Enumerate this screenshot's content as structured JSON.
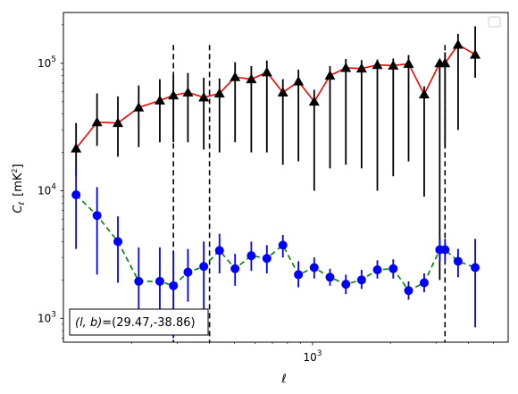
{
  "chart_data": {
    "type": "line",
    "xlabel": "ℓ",
    "ylabel_main": "C",
    "ylabel_sub": "ℓ",
    "ylabel_unit": "[mK",
    "ylabel_unit_sup": "2",
    "ylabel_unit_close": "]",
    "xscale": "log",
    "yscale": "log",
    "xlim": [
      109,
      5700
    ],
    "ylim": [
      650,
      250000
    ],
    "x_tick_labels": [
      {
        "value": 1000,
        "base": "10",
        "exp": "3"
      }
    ],
    "y_tick_labels": [
      {
        "value": 1000,
        "base": "10",
        "exp": "3"
      },
      {
        "value": 10000,
        "base": "10",
        "exp": "4"
      },
      {
        "value": 100000,
        "base": "10",
        "exp": "5"
      }
    ],
    "annotation": "(l, b)=(29.47,-38.86)",
    "annotation_parts": {
      "lb": "(l, b)",
      "eq": "=(29.47,-38.86)"
    },
    "legend": "top-right (empty)",
    "vlines": [
      290,
      400,
      3250
    ],
    "series": [
      {
        "marker": "triangle",
        "line_color": "#ff0000",
        "marker_color": "#000000",
        "line_style": "solid",
        "x": [
          122,
          147,
          177,
          213,
          257,
          290,
          330,
          380,
          437,
          502,
          580,
          666,
          768,
          882,
          1015,
          1168,
          1345,
          1547,
          1780,
          2050,
          2350,
          2700,
          3100,
          3250,
          3650,
          4250
        ],
        "y": [
          21500,
          34500,
          34000,
          45000,
          51000,
          56000,
          59000,
          54000,
          58000,
          78000,
          75000,
          85000,
          59000,
          72000,
          50000,
          80000,
          92000,
          91000,
          97000,
          96000,
          99000,
          57000,
          100000,
          100000,
          140000,
          117000
        ],
        "err_low": [
          13000,
          22500,
          18500,
          22000,
          24000,
          24000,
          24000,
          21000,
          20000,
          24000,
          20000,
          20000,
          16000,
          17000,
          10000,
          15000,
          16000,
          15000,
          10000,
          13000,
          17000,
          9000,
          2000,
          22000,
          30000,
          77000
        ],
        "err_high": [
          34000,
          58000,
          55000,
          67000,
          75000,
          80000,
          84000,
          77000,
          76000,
          102000,
          95000,
          105000,
          75000,
          89000,
          62000,
          95000,
          108000,
          106000,
          107000,
          109000,
          116000,
          66000,
          102000,
          122000,
          170000,
          195000
        ]
      },
      {
        "marker": "circle",
        "line_color": "#008000",
        "marker_color": "#0000ff",
        "line_style": "dashed",
        "x": [
          122,
          147,
          177,
          213,
          257,
          290,
          330,
          380,
          437,
          502,
          580,
          666,
          768,
          882,
          1015,
          1168,
          1345,
          1547,
          1780,
          2050,
          2350,
          2700,
          3100,
          3250,
          3650,
          4250
        ],
        "y": [
          9300,
          6400,
          4000,
          1950,
          1950,
          1800,
          2300,
          2550,
          3400,
          2450,
          3100,
          2950,
          3750,
          2200,
          2500,
          2100,
          1850,
          2000,
          2400,
          2450,
          1650,
          1900,
          3450,
          3450,
          2800,
          2500
        ],
        "err_low": [
          3500,
          2200,
          1900,
          750,
          750,
          700,
          1350,
          1100,
          2250,
          1800,
          2350,
          2250,
          3000,
          1750,
          2050,
          1800,
          1550,
          1700,
          2050,
          2050,
          1400,
          1600,
          2800,
          2800,
          2100,
          850
        ],
        "err_high": [
          15000,
          10700,
          6300,
          3600,
          3600,
          3300,
          3500,
          4000,
          4600,
          3200,
          4000,
          3750,
          4500,
          2800,
          3000,
          2450,
          2200,
          2400,
          2850,
          2900,
          1950,
          2250,
          4200,
          4200,
          3500,
          4200
        ]
      }
    ]
  }
}
